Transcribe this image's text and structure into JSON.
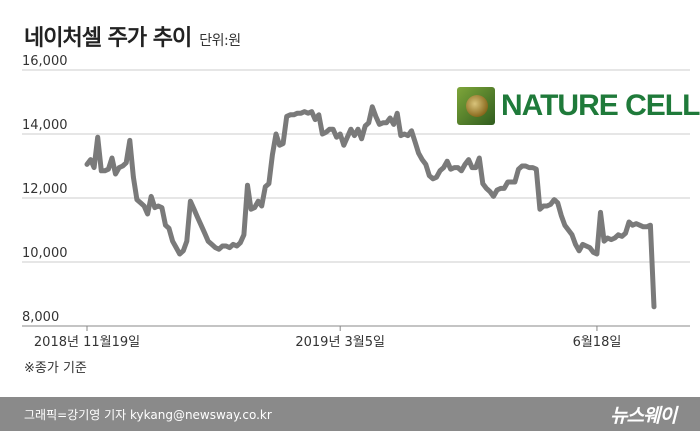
{
  "header": {
    "title": "네이처셀 주가 추이",
    "unit": "단위:원"
  },
  "logo": {
    "text": "NATURE CELL"
  },
  "note": "※종가 기준",
  "footer": {
    "credit": "그래픽=강기영 기자 kykang@newsway.co.kr",
    "brand": "뉴스웨이"
  },
  "colors": {
    "line": "#7a7a7a",
    "grid": "#cccccc",
    "footer": "#8a8a8a",
    "logo_green": "#1f7a3a"
  },
  "chart_data": {
    "type": "line",
    "title": "네이처셀 주가 추이",
    "ylabel": "단위:원",
    "ylim": [
      8000,
      16000
    ],
    "yticks": [
      16000,
      14000,
      12000,
      10000,
      8000
    ],
    "ytick_labels": [
      "16,000",
      "14,000",
      "12,000",
      "10,000",
      "8,000"
    ],
    "xtick_labels": [
      "2018년 11월19일",
      "2019년 3월5일",
      "6월18일"
    ],
    "xtick_index": [
      0,
      71,
      143
    ],
    "grid": true,
    "series": [
      {
        "values": [
          13050,
          13200,
          12950,
          13900,
          12850,
          12850,
          12900,
          13250,
          12750,
          12950,
          13000,
          13100,
          13800,
          12650,
          11950,
          11850,
          11750,
          11500,
          12050,
          11700,
          11750,
          11700,
          11150,
          11050,
          10650,
          10450,
          10250,
          10350,
          10650,
          11900,
          11650,
          11400,
          11150,
          10900,
          10650,
          10550,
          10450,
          10400,
          10500,
          10500,
          10450,
          10550,
          10500,
          10600,
          10850,
          12400,
          11650,
          11700,
          11900,
          11750,
          12350,
          12450,
          13350,
          14000,
          13650,
          13700,
          14550,
          14600,
          14600,
          14650,
          14650,
          14700,
          14650,
          14700,
          14450,
          14600,
          14000,
          14050,
          14150,
          14150,
          13900,
          14000,
          13650,
          13900,
          14150,
          13950,
          14150,
          13850,
          14250,
          14350,
          14850,
          14550,
          14300,
          14350,
          14350,
          14500,
          14300,
          14650,
          13950,
          14000,
          13950,
          14100,
          13750,
          13400,
          13200,
          13050,
          12700,
          12600,
          12650,
          12850,
          12950,
          13150,
          12900,
          12950,
          12950,
          12850,
          13050,
          13200,
          12950,
          12950,
          13250,
          12450,
          12300,
          12200,
          12050,
          12250,
          12300,
          12300,
          12500,
          12500,
          12500,
          12900,
          13000,
          13000,
          12950,
          12950,
          12900,
          11650,
          11750,
          11750,
          11800,
          11950,
          11850,
          11450,
          11150,
          11000,
          10850,
          10550,
          10350,
          10550,
          10500,
          10450,
          10300,
          10250,
          11550,
          10650,
          10750,
          10700,
          10750,
          10850,
          10800,
          10900,
          11250,
          11150,
          11200,
          11150,
          11100,
          11100,
          11150,
          8600
        ]
      }
    ]
  }
}
